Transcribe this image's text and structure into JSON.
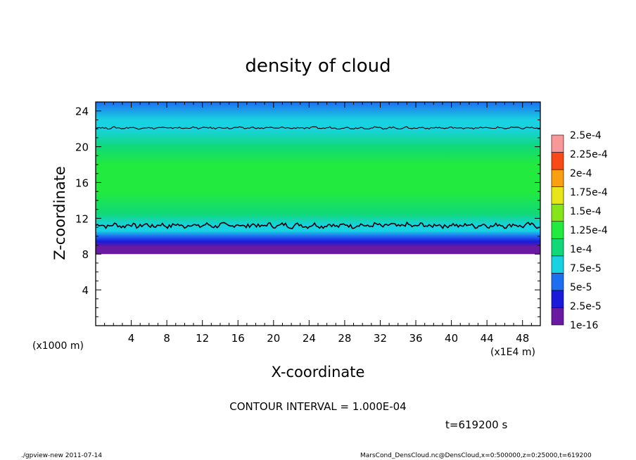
{
  "chart_data": {
    "type": "heatmap",
    "title": "density of cloud",
    "xlabel": "X-coordinate",
    "ylabel": "Z-coordinate",
    "x_unit_label": "(x1E4 m)",
    "y_unit_label": "(x1000 m)",
    "xlim": [
      0,
      50
    ],
    "ylim": [
      0,
      25
    ],
    "x_ticks": [
      4,
      8,
      12,
      16,
      20,
      24,
      28,
      32,
      36,
      40,
      44,
      48
    ],
    "y_ticks": [
      4,
      8,
      12,
      16,
      20,
      24
    ],
    "contour_interval_label": "CONTOUR INTERVAL = 1.000E-04",
    "time_label": "t=619200 s",
    "colorbar": {
      "labels": [
        "1e-16",
        "2.5e-5",
        "5e-5",
        "7.5e-5",
        "1e-4",
        "1.25e-4",
        "1.5e-4",
        "1.75e-4",
        "2e-4",
        "2.25e-4",
        "2.5e-4"
      ],
      "colors": [
        "#6a1aa0",
        "#1a1ad8",
        "#1e6ef0",
        "#18d2e2",
        "#10d878",
        "#22ea3e",
        "#86e41a",
        "#e8e61a",
        "#f8a012",
        "#f84a18",
        "#f89898"
      ]
    },
    "profile": {
      "z": [
        8.0,
        8.8,
        9.4,
        10.0,
        10.6,
        11.2,
        12.5,
        15.0,
        18.0,
        20.0,
        22.0,
        23.0,
        25.0
      ],
      "value": [
        5e-06,
        2e-05,
        4e-05,
        6e-05,
        8e-05,
        9.5e-05,
        0.00012,
        0.000135,
        0.00013,
        0.00011,
        9e-05,
        8e-05,
        7e-05
      ]
    },
    "contour_levels": [
      {
        "level": "1.000E-04",
        "z_mean": 11.2
      },
      {
        "level": "1.000E-04",
        "z_mean": 22.1
      }
    ],
    "cloud_base_z": 8.0
  },
  "footer": {
    "left": "./gpview-new 2011-07-14",
    "right": "MarsCond_DensCloud.nc@DensCloud,x=0:500000,z=0:25000,t=619200"
  }
}
